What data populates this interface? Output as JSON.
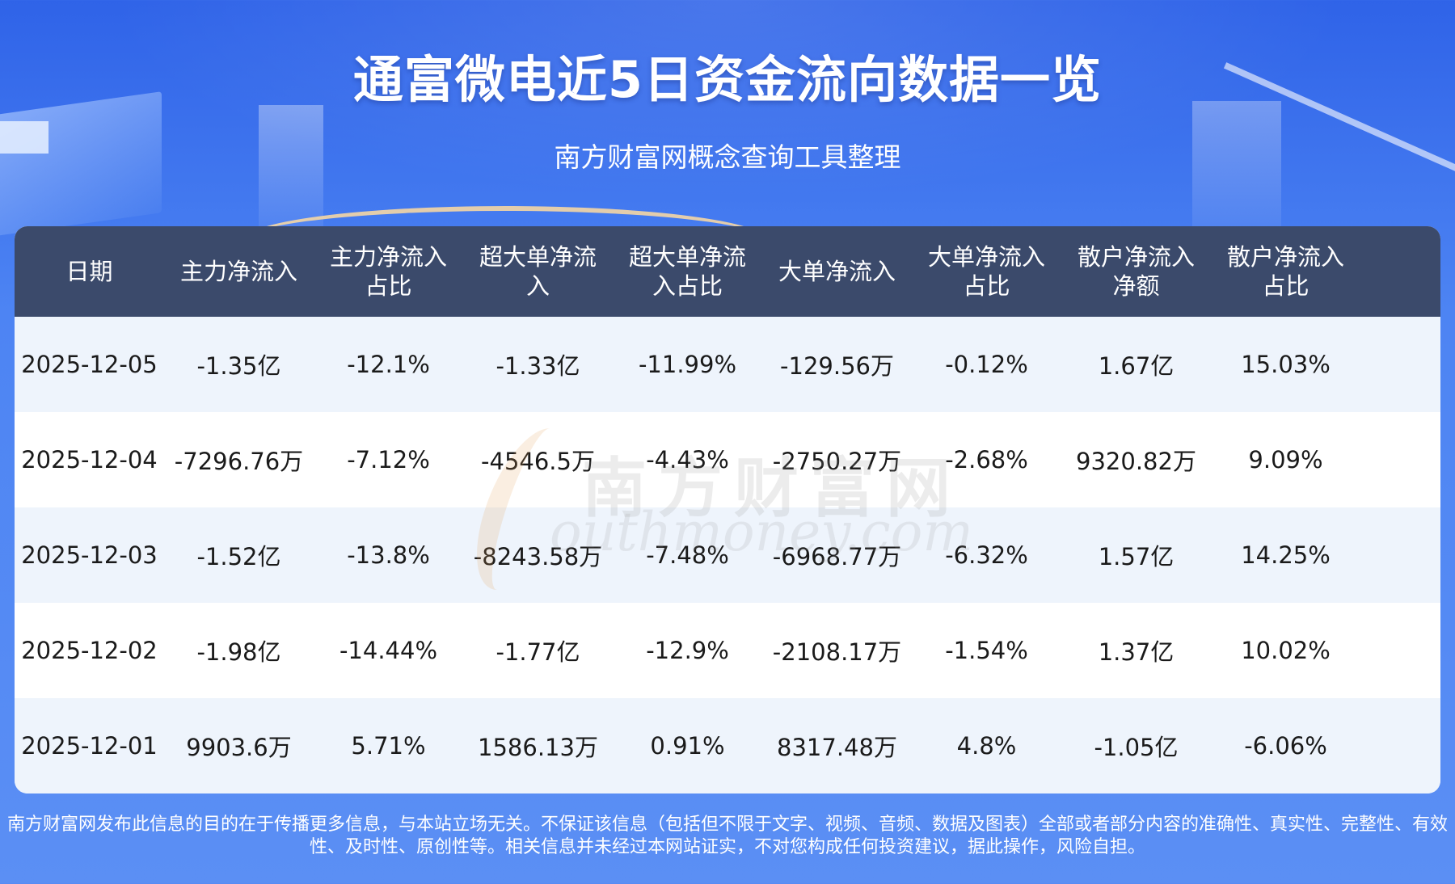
{
  "header": {
    "title": "通富微电近5日资金流向数据一览",
    "subtitle": "南方财富网概念查询工具整理"
  },
  "table": {
    "columns": [
      [
        "日期"
      ],
      [
        "主力净流入"
      ],
      [
        "主力净流入",
        "占比"
      ],
      [
        "超大单净流",
        "入"
      ],
      [
        "超大单净流",
        "入占比"
      ],
      [
        "大单净流入"
      ],
      [
        "大单净流入",
        "占比"
      ],
      [
        "散户净流入",
        "净额"
      ],
      [
        "散户净流入",
        "占比"
      ]
    ],
    "rows": [
      [
        "2025-12-05",
        "-1.35亿",
        "-12.1%",
        "-1.33亿",
        "-11.99%",
        "-129.56万",
        "-0.12%",
        "1.67亿",
        "15.03%"
      ],
      [
        "2025-12-04",
        "-7296.76万",
        "-7.12%",
        "-4546.5万",
        "-4.43%",
        "-2750.27万",
        "-2.68%",
        "9320.82万",
        "9.09%"
      ],
      [
        "2025-12-03",
        "-1.52亿",
        "-13.8%",
        "-8243.58万",
        "-7.48%",
        "-6968.77万",
        "-6.32%",
        "1.57亿",
        "14.25%"
      ],
      [
        "2025-12-02",
        "-1.98亿",
        "-14.44%",
        "-1.77亿",
        "-12.9%",
        "-2108.17万",
        "-1.54%",
        "1.37亿",
        "10.02%"
      ],
      [
        "2025-12-01",
        "9903.6万",
        "5.71%",
        "1586.13万",
        "0.91%",
        "8317.48万",
        "4.8%",
        "-1.05亿",
        "-6.06%"
      ]
    ]
  },
  "watermark": {
    "cn": "南方财富网",
    "en": "outhmoney.com"
  },
  "footer": {
    "line1": "南方财富网发布此信息的目的在于传播更多信息，与本站立场无关。不保证该信息（包括但不限于文字、视频、音频、数据及图表）全部或者部分内容的准确性、真实性、完整性、有效",
    "line2": "性、及时性、原创性等。相关信息并未经过本网站证实，不对您构成任何投资建议，据此操作，风险自担。"
  }
}
